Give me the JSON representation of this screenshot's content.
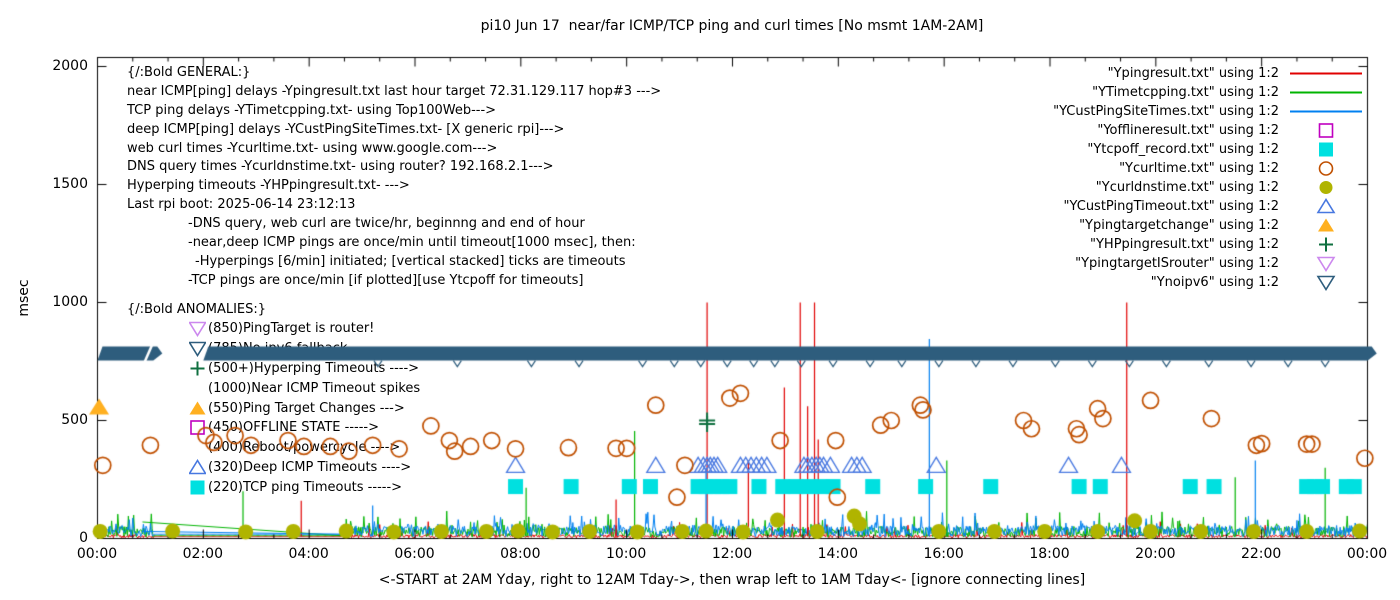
{
  "title": "pi10 Jun 17  near/far ICMP/TCP ping and curl times [No msmt 1AM-2AM]",
  "axes": {
    "ylabel": "msec",
    "xlabel": "<-START at 2AM Yday, right to 12AM Tday->, then wrap left to 1AM Tday<- [ignore connecting lines]",
    "y_ticks": [
      0,
      500,
      1000,
      1500,
      2000
    ],
    "x_ticks": [
      "00:00",
      "02:00",
      "04:00",
      "06:00",
      "08:00",
      "10:00",
      "12:00",
      "14:00",
      "16:00",
      "18:00",
      "20:00",
      "22:00",
      "00:00"
    ],
    "y_range": [
      0,
      2040
    ],
    "x_range_hours": [
      0,
      24
    ]
  },
  "legend": {
    "items": [
      {
        "label": "\"Ypingresult.txt\" using 1:2",
        "marker": "line",
        "color": "#e00000"
      },
      {
        "label": "\"YTimetcpping.txt\" using 1:2",
        "marker": "line",
        "color": "#00b400"
      },
      {
        "label": "\"YCustPingSiteTimes.txt\" using 1:2",
        "marker": "line",
        "color": "#0080f0"
      },
      {
        "label": "\"Yofflineresult.txt\" using 1:2",
        "marker": "square-open",
        "color": "#c000c0"
      },
      {
        "label": "\"Ytcpoff_record.txt\" using 1:2",
        "marker": "square-filled",
        "color": "#00e0e0"
      },
      {
        "label": "\"Ycurltime.txt\" using 1:2",
        "marker": "circle-open",
        "color": "#c05000"
      },
      {
        "label": "\"Ycurldnstime.txt\" using 1:2",
        "marker": "circle-filled",
        "color": "#b0b400"
      },
      {
        "label": "\"YCustPingTimeout.txt\" using 1:2",
        "marker": "triangle-open",
        "color": "#4878e0"
      },
      {
        "label": "\"Ypingtargetchange\" using 1:2",
        "marker": "triangle-filled",
        "color": "#ffb020"
      },
      {
        "label": "\"YHPpingresult.txt\" using 1:2",
        "marker": "plus",
        "color": "#107040"
      },
      {
        "label": "\"YpingtargetISrouter\" using 1:2",
        "marker": "triangle-down-open",
        "color": "#cc88ee"
      },
      {
        "label": "\"Ynoipv6\" using 1:2",
        "marker": "triangle-down-open",
        "color": "#2e5d7d"
      }
    ]
  },
  "annotations": {
    "general": {
      "header": "{/:Bold GENERAL:}",
      "lines": [
        {
          "text": "near ICMP[ping] delays -Ypingresult.txt last hour target 72.31.129.117 hop#3 --->",
          "indent": 0
        },
        {
          "text": "TCP ping delays -YTimetcpping.txt- using Top100Web--->",
          "indent": 0
        },
        {
          "text": "deep ICMP[ping] delays -YCustPingSiteTimes.txt- [X generic rpi]--->",
          "indent": 0
        },
        {
          "text": "web curl times -Ycurltime.txt- using www.google.com--->",
          "indent": 0
        },
        {
          "text": "DNS query times -Ycurldnstime.txt- using router? 192.168.2.1--->",
          "indent": 0
        },
        {
          "text": "Hyperping timeouts -YHPpingresult.txt- --->",
          "indent": 0
        },
        {
          "text": "Last rpi boot: 2025-06-14 23:12:13",
          "indent": 0
        },
        {
          "text": "-DNS query, web curl are twice/hr, beginnng and end of hour",
          "indent": 1
        },
        {
          "text": "-near,deep ICMP pings are once/min until timeout[1000 msec], then:",
          "indent": 1
        },
        {
          "text": "-Hyperpings [6/min] initiated; [vertical stacked] ticks are timeouts",
          "indent": 2
        },
        {
          "text": "-TCP pings are once/min [if plotted][use Ytcpoff for timeouts]",
          "indent": 1
        }
      ]
    },
    "anomalies": {
      "header": "{/:Bold ANOMALIES:}",
      "lines": [
        {
          "marker": "triangle-down-open",
          "color": "#cc88ee",
          "text": "(850)PingTarget is router!"
        },
        {
          "marker": "triangle-down-open",
          "color": "#2e5d7d",
          "text": "(785)No ipv6 fallback"
        },
        {
          "marker": "plus",
          "color": "#107040",
          "text": "(500+)Hyperping Timeouts ---->"
        },
        {
          "marker": "none",
          "color": "",
          "text": "(1000)Near ICMP Timeout spikes"
        },
        {
          "marker": "triangle-filled",
          "color": "#ffb020",
          "text": "(550)Ping Target Changes --->"
        },
        {
          "marker": "square-open",
          "color": "#c000c0",
          "text": "(450)OFFLINE STATE ----->"
        },
        {
          "marker": "none",
          "color": "",
          "text": "(400)Reboot/powercycle ---->"
        },
        {
          "marker": "triangle-open",
          "color": "#4878e0",
          "text": "(320)Deep ICMP Timeouts ---->"
        },
        {
          "marker": "square-filled",
          "color": "#00e0e0",
          "text": "(220)TCP ping Timeouts ----->"
        }
      ]
    }
  },
  "chart_data": {
    "type": "line",
    "x_unit": "hours since 2AM yesterday",
    "x_range": [
      0,
      24
    ],
    "y_range": [
      0,
      2040
    ],
    "quiet_hours": [
      1.05,
      4.65
    ],
    "series": [
      {
        "name": "Ypingresult.txt",
        "style": "line",
        "color": "#e00000",
        "baseline_noise_msec": [
          2,
          20
        ],
        "spikes": [
          [
            3.85,
            160
          ],
          [
            9.8,
            165
          ],
          [
            11.52,
            1000
          ],
          [
            12.3,
            330
          ],
          [
            12.98,
            640
          ],
          [
            13.28,
            1000
          ],
          [
            13.42,
            560
          ],
          [
            13.55,
            1000
          ],
          [
            13.62,
            420
          ],
          [
            19.45,
            1000
          ]
        ]
      },
      {
        "name": "YTimetcpping.txt",
        "style": "line",
        "color": "#00b400",
        "baseline_noise_msec": [
          8,
          110
        ],
        "spikes": [
          [
            2.75,
            200
          ],
          [
            8.1,
            215
          ],
          [
            10.15,
            455
          ],
          [
            16.05,
            330
          ],
          [
            21.5,
            260
          ],
          [
            23.2,
            300
          ]
        ]
      },
      {
        "name": "YCustPingSiteTimes.txt",
        "style": "line",
        "color": "#0080f0",
        "baseline_noise_msec": [
          10,
          110
        ],
        "spikes": [
          [
            5.2,
            140
          ],
          [
            11.5,
            300
          ],
          [
            15.72,
            845
          ],
          [
            21.88,
            330
          ]
        ]
      },
      {
        "name": "Yofflineresult.txt",
        "style": "square-open",
        "color": "#c000c0",
        "points": []
      },
      {
        "name": "Ytcpoff_record.txt",
        "style": "square-filled",
        "color": "#00e0e0",
        "y": 220,
        "hours": [
          7.9,
          8.95,
          10.05,
          10.45,
          11.35,
          11.5,
          11.65,
          11.8,
          11.95,
          12.5,
          12.95,
          13.2,
          13.45,
          13.7,
          13.9,
          14.65,
          15.65,
          16.88,
          18.55,
          18.95,
          20.65,
          21.1,
          22.85,
          23.0,
          23.15,
          23.6,
          23.75
        ]
      },
      {
        "name": "Ycurltime.txt",
        "style": "circle-open",
        "color": "#c05000",
        "points": [
          [
            0.1,
            310
          ],
          [
            1.0,
            395
          ],
          [
            2.05,
            436
          ],
          [
            2.2,
            407
          ],
          [
            2.6,
            436
          ],
          [
            2.9,
            395
          ],
          [
            3.6,
            415
          ],
          [
            3.9,
            390
          ],
          [
            4.4,
            390
          ],
          [
            4.75,
            370
          ],
          [
            5.2,
            395
          ],
          [
            5.7,
            380
          ],
          [
            6.3,
            477
          ],
          [
            6.65,
            415
          ],
          [
            6.75,
            370
          ],
          [
            7.05,
            390
          ],
          [
            7.45,
            415
          ],
          [
            7.9,
            380
          ],
          [
            8.9,
            385
          ],
          [
            9.8,
            382
          ],
          [
            10.0,
            382
          ],
          [
            10.55,
            565
          ],
          [
            10.95,
            175
          ],
          [
            11.1,
            310
          ],
          [
            11.95,
            595
          ],
          [
            12.15,
            615
          ],
          [
            12.9,
            415
          ],
          [
            13.95,
            415
          ],
          [
            13.98,
            175
          ],
          [
            14.8,
            480
          ],
          [
            15.0,
            500
          ],
          [
            15.55,
            565
          ],
          [
            15.6,
            545
          ],
          [
            17.5,
            500
          ],
          [
            17.65,
            465
          ],
          [
            18.5,
            465
          ],
          [
            18.55,
            440
          ],
          [
            18.9,
            550
          ],
          [
            19.0,
            508
          ],
          [
            19.9,
            585
          ],
          [
            21.05,
            508
          ],
          [
            21.9,
            395
          ],
          [
            22.0,
            402
          ],
          [
            22.85,
            400
          ],
          [
            22.95,
            400
          ],
          [
            23.95,
            340
          ]
        ]
      },
      {
        "name": "Ycurldnstime.txt",
        "style": "circle-filled",
        "color": "#b0b400",
        "points": [
          [
            0.05,
            30
          ],
          [
            1.42,
            32
          ],
          [
            2.8,
            28
          ],
          [
            3.7,
            30
          ],
          [
            4.7,
            32
          ],
          [
            5.6,
            28
          ],
          [
            6.5,
            30
          ],
          [
            7.35,
            30
          ],
          [
            7.95,
            32
          ],
          [
            8.6,
            28
          ],
          [
            9.3,
            30
          ],
          [
            10.2,
            28
          ],
          [
            11.05,
            30
          ],
          [
            11.5,
            32
          ],
          [
            12.2,
            28
          ],
          [
            12.85,
            78
          ],
          [
            13.6,
            30
          ],
          [
            14.3,
            95
          ],
          [
            14.4,
            62
          ],
          [
            15.9,
            30
          ],
          [
            16.95,
            30
          ],
          [
            17.9,
            30
          ],
          [
            18.9,
            30
          ],
          [
            19.6,
            75
          ],
          [
            19.9,
            30
          ],
          [
            20.85,
            30
          ],
          [
            21.85,
            30
          ],
          [
            22.85,
            30
          ],
          [
            23.85,
            32
          ]
        ]
      },
      {
        "name": "YCustPingTimeout.txt",
        "style": "triangle-open",
        "color": "#4878e0",
        "y": 310,
        "hours": [
          7.9,
          10.55,
          11.35,
          11.45,
          11.52,
          11.58,
          11.65,
          11.72,
          12.15,
          12.25,
          12.35,
          12.45,
          12.55,
          12.65,
          13.35,
          13.42,
          13.5,
          13.58,
          13.65,
          13.72,
          13.85,
          14.25,
          14.35,
          14.45,
          15.85,
          18.35,
          19.35
        ]
      },
      {
        "name": "Ypingtargetchange",
        "style": "triangle-filled",
        "color": "#ffb020",
        "points": [
          [
            0.03,
            555
          ]
        ]
      },
      {
        "name": "YHPpingresult.txt",
        "style": "plus",
        "color": "#107040",
        "points": [
          [
            11.52,
            500
          ],
          [
            11.52,
            485
          ]
        ]
      },
      {
        "name": "YpingtargetISrouter",
        "style": "triangle-down-open",
        "color": "#cc88ee",
        "points": []
      },
      {
        "name": "Ynoipv6",
        "style": "band",
        "color": "#2e5d7d",
        "band_y": [
          754,
          814
        ],
        "segments_hours": [
          [
            0,
            1.13
          ],
          [
            2.0,
            24.08
          ]
        ],
        "gap_slash_hour": 0.97,
        "tip_hours": [
          5.3,
          6.8,
          8.2,
          9.1,
          10.3,
          10.9,
          11.4,
          11.9,
          12.4,
          12.8,
          13.3,
          13.9,
          14.6,
          15.2,
          15.9,
          16.6,
          17.3,
          18.1,
          18.8,
          19.5,
          20.2,
          21.0,
          21.8,
          22.5,
          23.2
        ]
      }
    ],
    "connecting_lines": [
      {
        "color": "#00b400",
        "from": [
          0.85,
          70
        ],
        "to": [
          4.6,
          12
        ]
      },
      {
        "color": "#0080f0",
        "from": [
          0.85,
          30
        ],
        "to": [
          4.6,
          18
        ]
      }
    ]
  }
}
